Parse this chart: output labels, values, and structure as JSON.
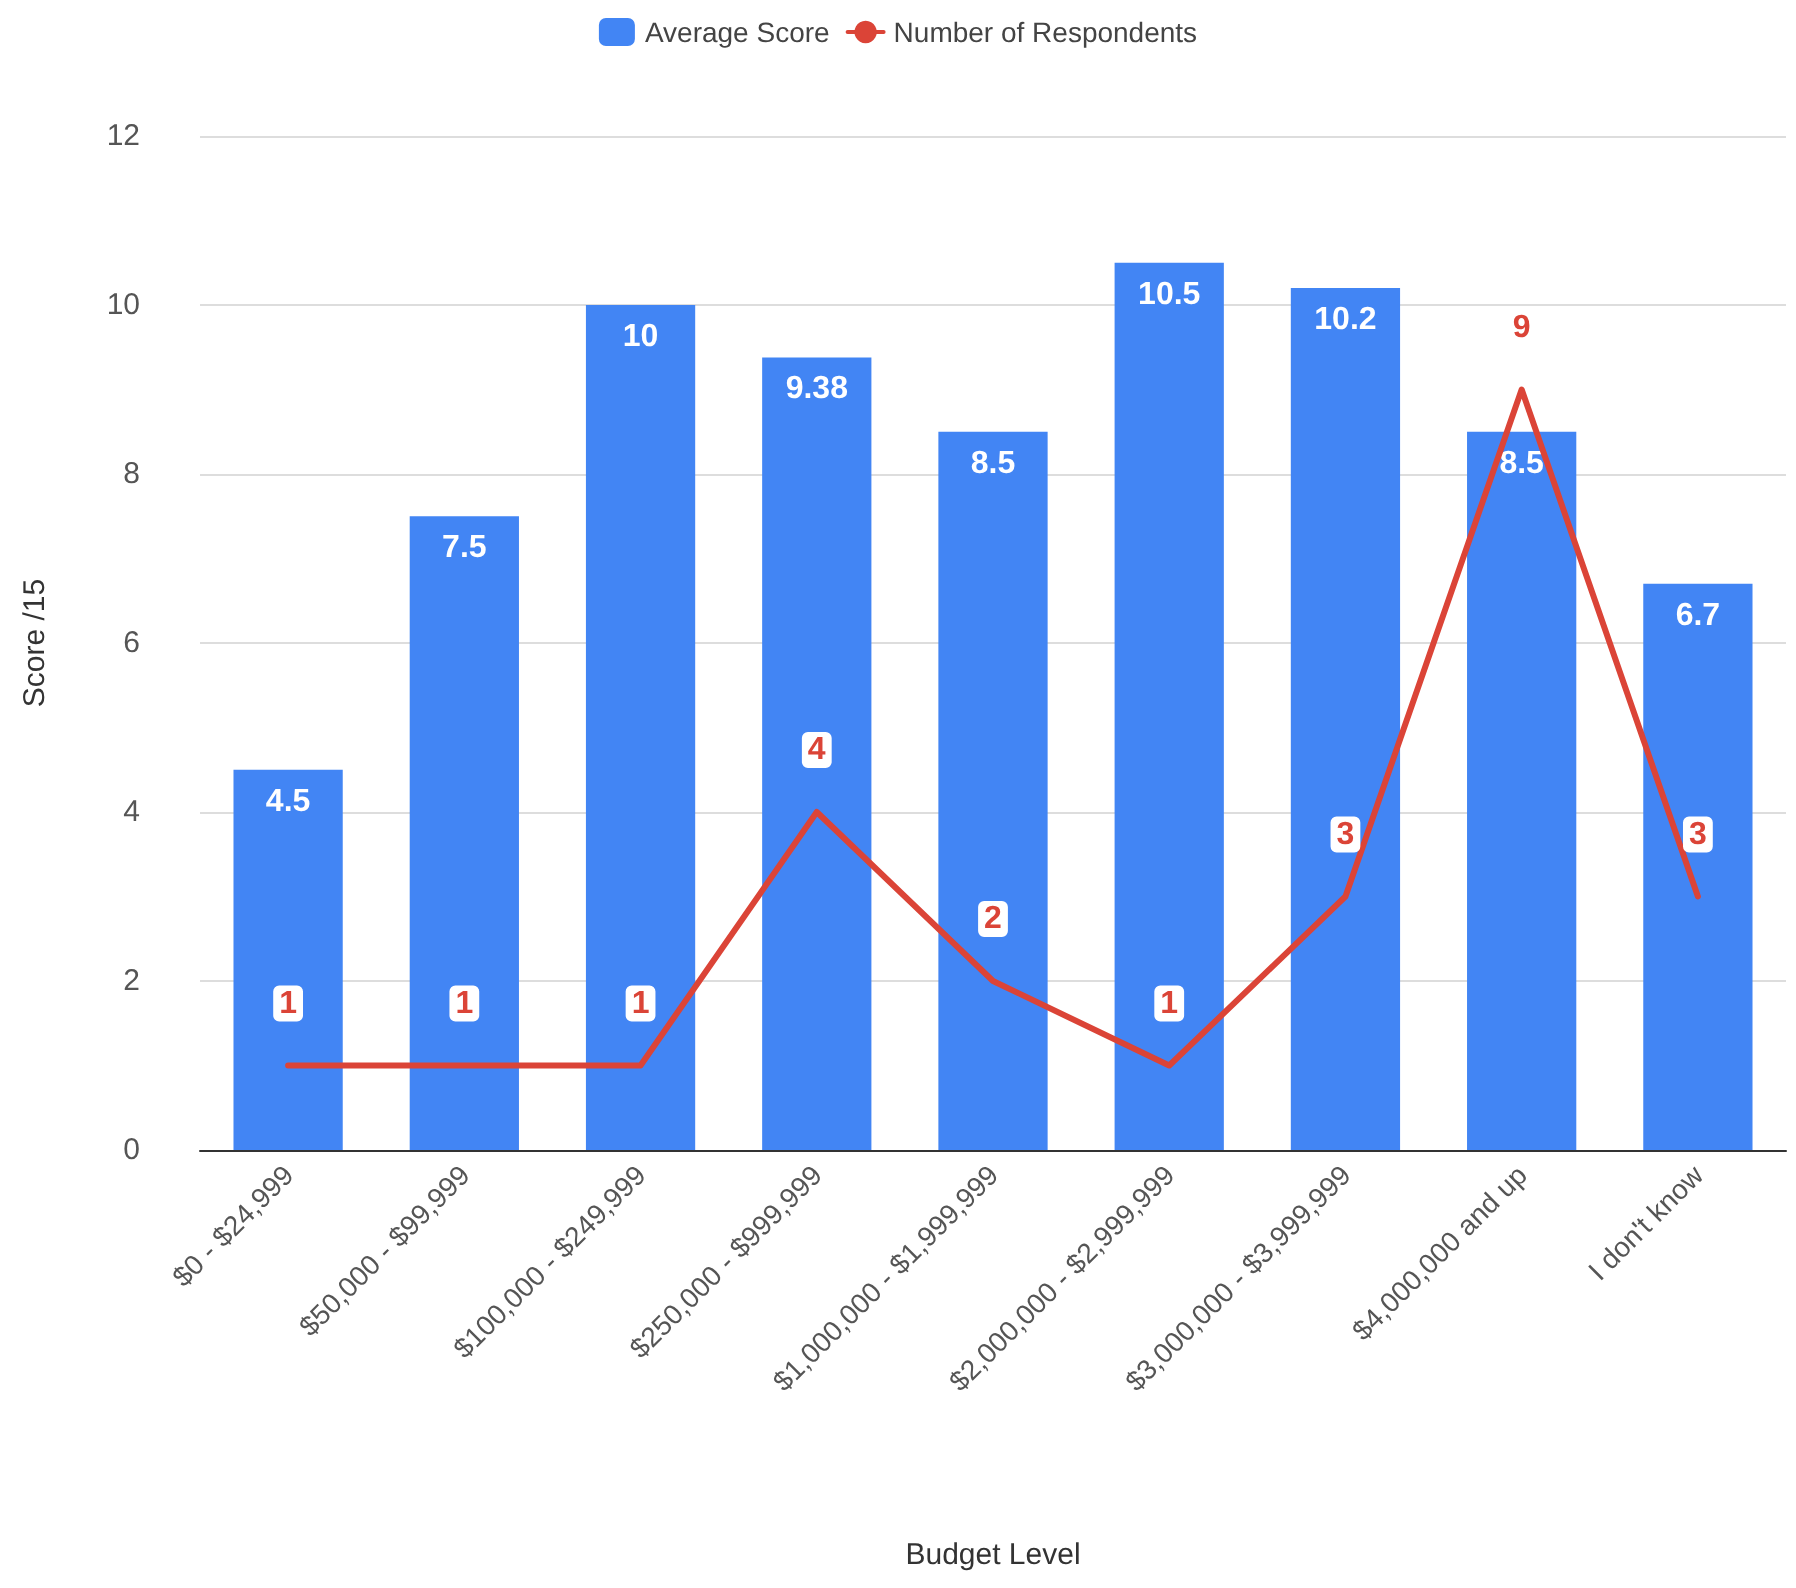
{
  "chart_data": {
    "type": "bar",
    "xlabel": "Budget Level",
    "ylabel": "Score /15",
    "categories": [
      "$0 - $24,999",
      "$50,000 - $99,999",
      "$100,000 - $249,999",
      "$250,000 - $999,999",
      "$1,000,000 - $1,999,999",
      "$2,000,000 - $2,999,999",
      "$3,000,000 - $3,999,999",
      "$4,000,000 and up",
      "I don't know"
    ],
    "series": [
      {
        "name": "Average Score",
        "color": "#4285f4",
        "values": [
          4.5,
          7.5,
          10,
          9.38,
          8.5,
          10.5,
          10.2,
          8.5,
          6.7
        ]
      },
      {
        "name": "Number of Respondents",
        "type": "line",
        "color": "#db4437",
        "marker": "none",
        "values": [
          1,
          1,
          1,
          4,
          2,
          1,
          3,
          9,
          3
        ]
      }
    ],
    "ylim": [
      0,
      12
    ],
    "yticks": [
      0,
      2,
      4,
      6,
      8,
      10,
      12
    ],
    "grid": "y",
    "legend": "top",
    "data_labels": true
  }
}
